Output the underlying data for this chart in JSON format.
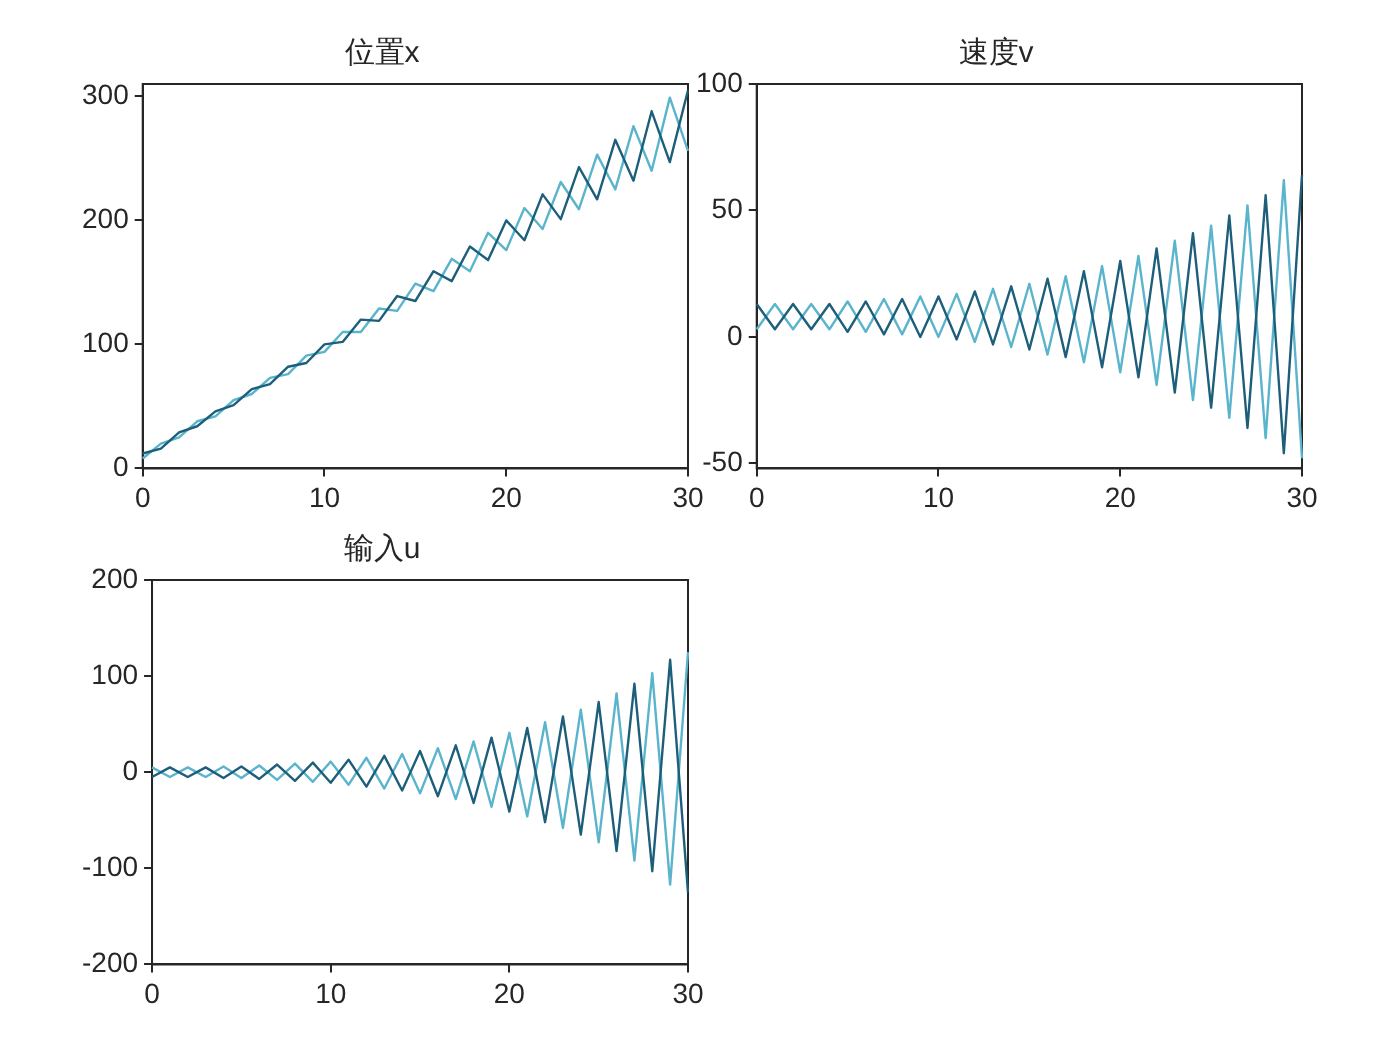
{
  "chart_data": [
    {
      "type": "line",
      "title": "位置x",
      "x": [
        0,
        1,
        2,
        3,
        4,
        5,
        6,
        7,
        8,
        9,
        10,
        11,
        12,
        13,
        14,
        15,
        16,
        17,
        18,
        19,
        20,
        21,
        22,
        23,
        24,
        25,
        26,
        27,
        28,
        29,
        30
      ],
      "xlim": [
        0,
        30
      ],
      "xticks": [
        0,
        10,
        20,
        30
      ],
      "ylim": [
        0,
        310
      ],
      "yticks": [
        0,
        100,
        200,
        300
      ],
      "grid": false,
      "legend": false,
      "marker": "none",
      "line_style": "solid",
      "series": [
        {
          "color": "#1d5f7a",
          "values": [
            12,
            16,
            29,
            34,
            46,
            51,
            64,
            68,
            82,
            85,
            100,
            102,
            120,
            119,
            139,
            135,
            159,
            151,
            179,
            168,
            200,
            184,
            221,
            201,
            243,
            217,
            265,
            232,
            288,
            247,
            305
          ]
        },
        {
          "color": "#5ab4cc",
          "values": [
            8,
            20,
            25,
            38,
            42,
            55,
            60,
            73,
            76,
            91,
            94,
            110,
            110,
            129,
            127,
            149,
            143,
            169,
            159,
            190,
            176,
            210,
            193,
            231,
            209,
            253,
            225,
            276,
            240,
            299,
            256
          ]
        }
      ]
    },
    {
      "type": "line",
      "title": "速度v",
      "x": [
        0,
        1,
        2,
        3,
        4,
        5,
        6,
        7,
        8,
        9,
        10,
        11,
        12,
        13,
        14,
        15,
        16,
        17,
        18,
        19,
        20,
        21,
        22,
        23,
        24,
        25,
        26,
        27,
        28,
        29,
        30
      ],
      "xlim": [
        0,
        30
      ],
      "xticks": [
        0,
        10,
        20,
        30
      ],
      "ylim": [
        -52,
        100
      ],
      "yticks": [
        -50,
        0,
        50,
        100
      ],
      "grid": false,
      "legend": false,
      "marker": "none",
      "line_style": "solid",
      "series": [
        {
          "color": "#1d5f7a",
          "values": [
            13,
            3,
            13,
            3,
            13,
            2,
            14,
            1,
            15,
            0,
            16,
            -1,
            18,
            -3,
            20,
            -5,
            23,
            -8,
            26,
            -12,
            30,
            -16,
            35,
            -22,
            41,
            -28,
            48,
            -36,
            56,
            -46,
            64
          ]
        },
        {
          "color": "#5ab4cc",
          "values": [
            3,
            13,
            3,
            13,
            3,
            14,
            2,
            15,
            1,
            16,
            0,
            17,
            -2,
            19,
            -4,
            21,
            -7,
            24,
            -10,
            28,
            -14,
            32,
            -19,
            38,
            -25,
            44,
            -32,
            52,
            -40,
            62,
            -48
          ]
        }
      ]
    },
    {
      "type": "line",
      "title": "输入u",
      "x": [
        0,
        1,
        2,
        3,
        4,
        5,
        6,
        7,
        8,
        9,
        10,
        11,
        12,
        13,
        14,
        15,
        16,
        17,
        18,
        19,
        20,
        21,
        22,
        23,
        24,
        25,
        26,
        27,
        28,
        29,
        30
      ],
      "xlim": [
        0,
        30
      ],
      "xticks": [
        0,
        10,
        20,
        30
      ],
      "ylim": [
        -200,
        200
      ],
      "yticks": [
        -200,
        -100,
        0,
        100,
        200
      ],
      "grid": false,
      "legend": false,
      "marker": "none",
      "line_style": "solid",
      "series": [
        {
          "color": "#1d5f7a",
          "values": [
            -5,
            5,
            -5,
            5,
            -6,
            6,
            -7,
            8,
            -9,
            10,
            -11,
            13,
            -15,
            17,
            -19,
            22,
            -25,
            28,
            -32,
            36,
            -41,
            46,
            -52,
            58,
            -65,
            73,
            -82,
            92,
            -103,
            117,
            -125
          ]
        },
        {
          "color": "#5ab4cc",
          "values": [
            5,
            -5,
            5,
            -5,
            6,
            -6,
            7,
            -8,
            9,
            -10,
            11,
            -13,
            15,
            -17,
            19,
            -22,
            25,
            -28,
            32,
            -36,
            41,
            -46,
            52,
            -58,
            65,
            -73,
            82,
            -92,
            103,
            -117,
            125
          ]
        }
      ]
    }
  ]
}
